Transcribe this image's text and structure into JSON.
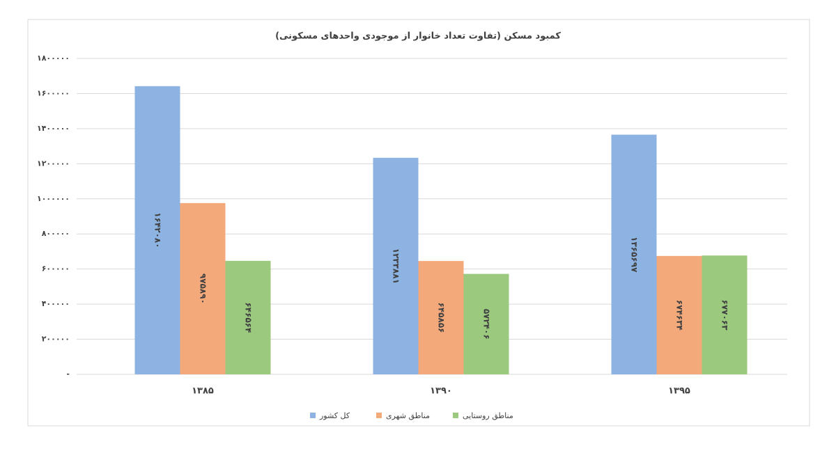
{
  "chart_data": {
    "type": "bar",
    "title": "کمبود مسکن (تفاوت تعداد خانوار از موجودی واحدهای مسکونی)",
    "categories": [
      "۱۳۸۵",
      "۱۳۹۰",
      "۱۳۹۵"
    ],
    "series": [
      {
        "name": "کل کشور",
        "color": "#8db3e2",
        "values": [
          1642080,
          1233881,
          1365697
        ],
        "value_labels": [
          "۱۶۴۲۰۸۰",
          "۱۲۳۳۸۸۱",
          "۱۳۶۵۶۹۷"
        ]
      },
      {
        "name": "مناطق شهری",
        "color": "#f4a97b",
        "values": [
          975890,
          645856,
          674634
        ],
        "value_labels": [
          "۹۷۵۸۹۰",
          "۶۴۵۸۵۶",
          "۶۷۴۶۳۴"
        ]
      },
      {
        "name": "مناطق روستایی",
        "color": "#9bca7f",
        "values": [
          646564,
          572406,
          677063
        ],
        "value_labels": [
          "۶۴۶۵۶۴",
          "۵۷۲۴۰۶",
          "۶۷۷۰۶۳"
        ]
      }
    ],
    "ylim": [
      0,
      1800000
    ],
    "yticks": [
      {
        "value": 0,
        "label": "-"
      },
      {
        "value": 200000,
        "label": "۲۰۰۰۰۰"
      },
      {
        "value": 400000,
        "label": "۴۰۰۰۰۰"
      },
      {
        "value": 600000,
        "label": "۶۰۰۰۰۰"
      },
      {
        "value": 800000,
        "label": "۸۰۰۰۰۰"
      },
      {
        "value": 1000000,
        "label": "۱۰۰۰۰۰۰"
      },
      {
        "value": 1200000,
        "label": "۱۲۰۰۰۰۰"
      },
      {
        "value": 1400000,
        "label": "۱۴۰۰۰۰۰"
      },
      {
        "value": 1600000,
        "label": "۱۶۰۰۰۰۰"
      },
      {
        "value": 1800000,
        "label": "۱۸۰۰۰۰۰"
      }
    ],
    "grid": true,
    "legend": "bottom"
  }
}
